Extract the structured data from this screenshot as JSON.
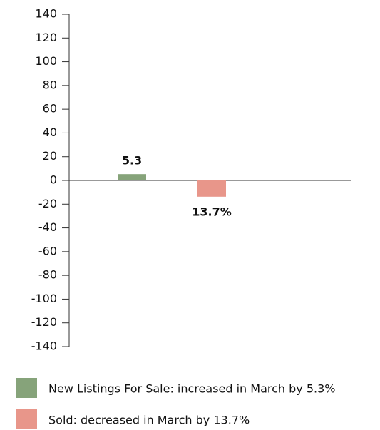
{
  "chart_data": {
    "type": "bar",
    "categories": [
      null
    ],
    "series": [
      {
        "name": "New Listings For Sale: increased in March by 5.3%",
        "color": "#86a37a",
        "values": [
          5.3
        ],
        "value_labels": [
          "5.3"
        ]
      },
      {
        "name": "Sold: decreased in March by 13.7%",
        "color": "#e8968a",
        "values": [
          -13.7
        ],
        "value_labels": [
          "13.7%"
        ]
      }
    ],
    "ylim": [
      -140,
      140
    ],
    "yticks": [
      -140,
      -120,
      -100,
      -80,
      -60,
      -40,
      -20,
      0,
      20,
      40,
      60,
      80,
      100,
      120,
      140
    ],
    "grid": false
  }
}
